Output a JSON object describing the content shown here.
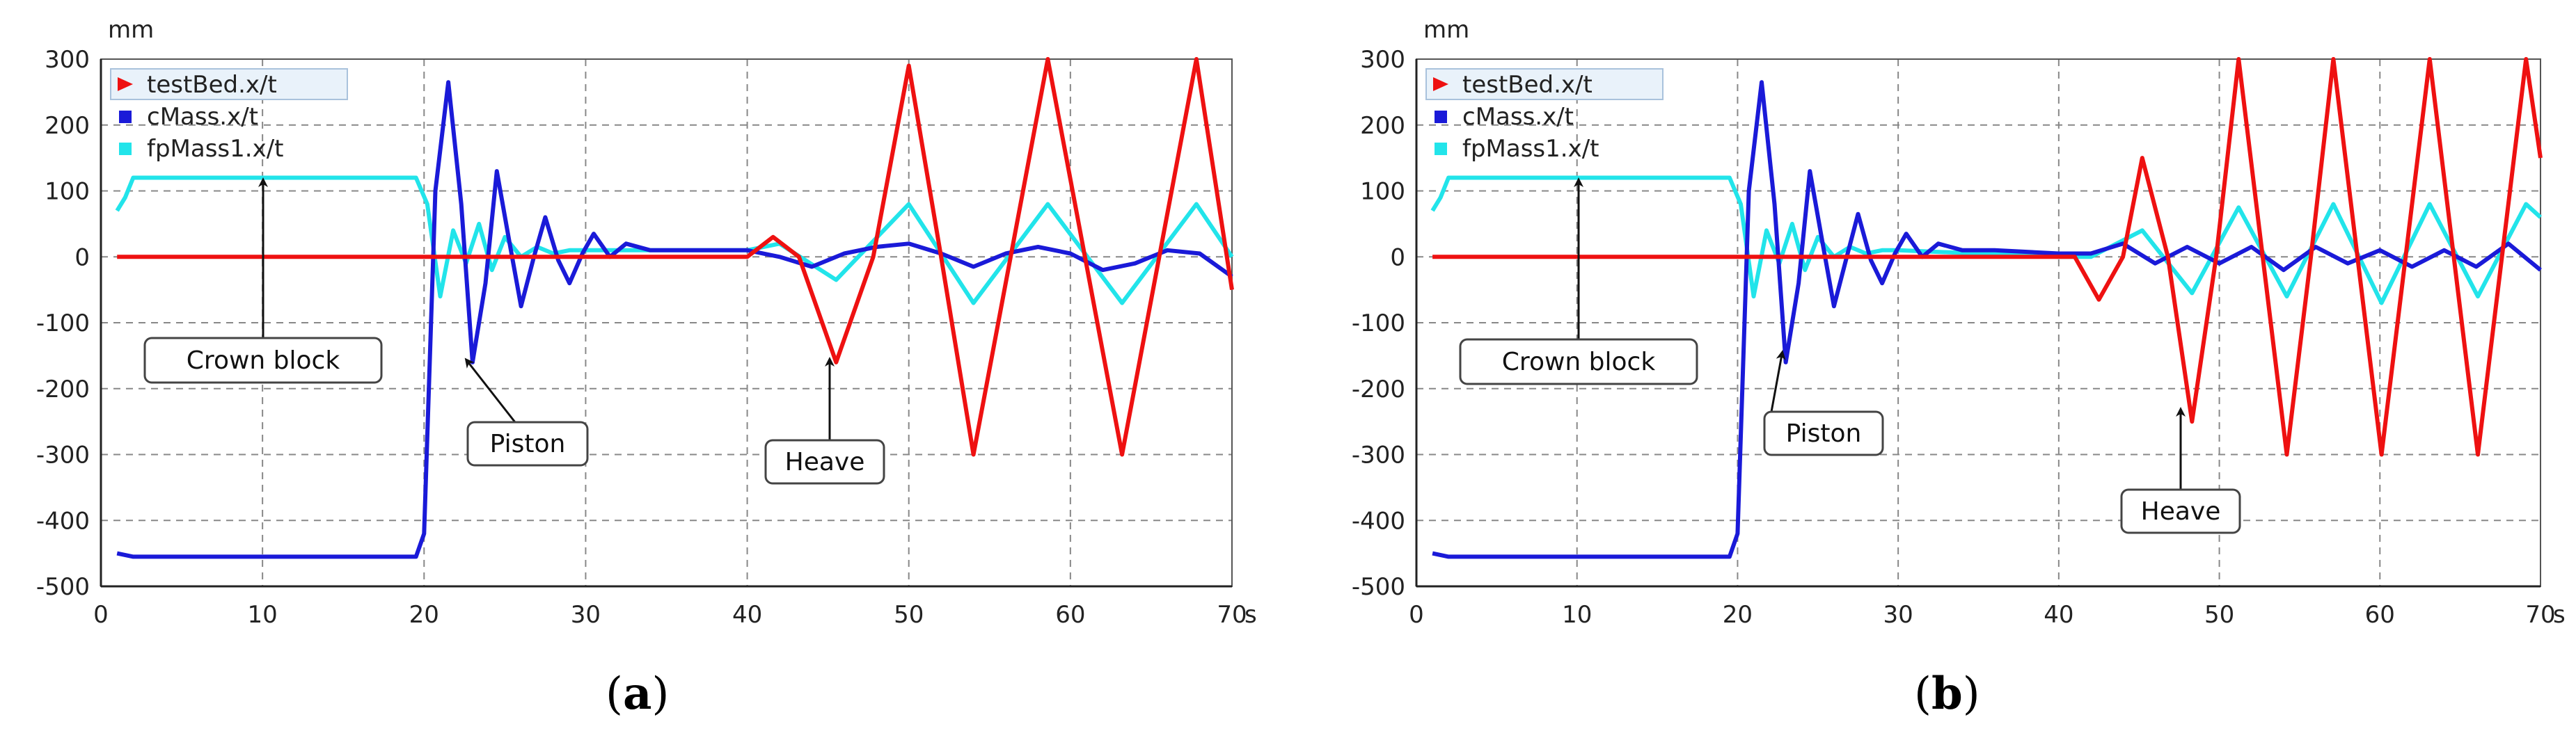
{
  "colors": {
    "testBed": "#ee1111",
    "cMass": "#1a1ad8",
    "fpMass1": "#22e4ea",
    "grid": "#888888",
    "legend_bg": "#e9f2fa"
  },
  "panels": [
    {
      "caption_open": "(",
      "caption_letter": "a",
      "caption_close": ")"
    },
    {
      "caption_open": "(",
      "caption_letter": "b",
      "caption_close": ")"
    }
  ],
  "chart_data": [
    {
      "type": "line",
      "xlabel": "s",
      "ylabel": "mm",
      "xlim": [
        0,
        70
      ],
      "ylim": [
        -500,
        300
      ],
      "xticks": [
        "0",
        "10",
        "20",
        "30",
        "40",
        "50",
        "60",
        "70"
      ],
      "yticks": [
        "300",
        "200",
        "100",
        "0",
        "-100",
        "-200",
        "-300",
        "-400",
        "-500"
      ],
      "grid": true,
      "legend_position": "top-left",
      "series": [
        {
          "name": "testBed.x/t",
          "color": "#ee1111",
          "x": [
            1,
            5,
            10,
            20,
            30,
            40,
            41.6,
            43.2,
            45.5,
            47.8,
            50,
            52,
            54,
            56.3,
            58.6,
            60.9,
            63.2,
            65.5,
            67.8,
            70
          ],
          "y": [
            0,
            0,
            0,
            0,
            0,
            0,
            30,
            0,
            -160,
            0,
            290,
            0,
            -300,
            0,
            300,
            0,
            -300,
            0,
            300,
            -50
          ]
        },
        {
          "name": "cMass.x/t",
          "color": "#1a1ad8",
          "x": [
            1,
            2,
            10,
            19.5,
            20,
            20.7,
            21.5,
            22.3,
            23,
            23.8,
            24.5,
            25.3,
            26,
            26.8,
            27.5,
            28.3,
            29,
            29.8,
            30.5,
            31.5,
            32.5,
            34,
            36,
            40,
            42,
            44,
            46,
            48,
            50,
            52,
            54,
            56,
            58,
            60,
            62,
            64,
            66,
            68,
            70
          ],
          "y": [
            -450,
            -455,
            -455,
            -455,
            -420,
            100,
            265,
            80,
            -160,
            -40,
            130,
            20,
            -75,
            0,
            60,
            -5,
            -40,
            5,
            35,
            0,
            20,
            10,
            10,
            10,
            0,
            -15,
            5,
            15,
            20,
            5,
            -15,
            5,
            15,
            5,
            -20,
            -10,
            10,
            5,
            -30
          ]
        },
        {
          "name": "fpMass1.x/t",
          "color": "#22e4ea",
          "x": [
            1,
            1.5,
            2,
            10,
            19.5,
            20.2,
            21,
            21.8,
            22.6,
            23.4,
            24.2,
            25,
            26,
            27,
            28,
            29,
            30,
            40,
            42,
            45.5,
            50,
            54,
            58.6,
            63.2,
            67.8,
            70
          ],
          "y": [
            70,
            90,
            120,
            120,
            120,
            80,
            -60,
            40,
            -10,
            50,
            -20,
            30,
            0,
            15,
            5,
            10,
            10,
            10,
            20,
            -35,
            80,
            -70,
            80,
            -70,
            80,
            0
          ]
        }
      ],
      "annotations": [
        "Crown block",
        "Piston",
        "Heave"
      ]
    },
    {
      "type": "line",
      "xlabel": "s",
      "ylabel": "mm",
      "xlim": [
        0,
        70
      ],
      "ylim": [
        -500,
        300
      ],
      "xticks": [
        "0",
        "10",
        "20",
        "30",
        "40",
        "50",
        "60",
        "70"
      ],
      "yticks": [
        "300",
        "200",
        "100",
        "0",
        "-100",
        "-200",
        "-300",
        "-400",
        "-500"
      ],
      "grid": true,
      "legend_position": "top-left",
      "series": [
        {
          "name": "testBed.x/t",
          "color": "#ee1111",
          "x": [
            1,
            10,
            20,
            30,
            40,
            41,
            42.5,
            44,
            45.2,
            46.8,
            48.3,
            49.8,
            51.2,
            52.7,
            54.2,
            55.7,
            57.1,
            58.6,
            60.1,
            61.6,
            63.1,
            64.6,
            66.1,
            67.6,
            69.1,
            70
          ],
          "y": [
            0,
            0,
            0,
            0,
            0,
            0,
            -65,
            0,
            150,
            0,
            -250,
            0,
            300,
            0,
            -300,
            0,
            300,
            0,
            -300,
            0,
            300,
            0,
            -300,
            0,
            300,
            150
          ]
        },
        {
          "name": "cMass.x/t",
          "color": "#1a1ad8",
          "x": [
            1,
            2,
            10,
            19.5,
            20,
            20.7,
            21.5,
            22.3,
            23,
            23.8,
            24.5,
            25.3,
            26,
            26.8,
            27.5,
            28.3,
            29,
            29.8,
            30.5,
            31.5,
            32.5,
            34,
            36,
            40,
            42,
            44,
            46,
            48,
            50,
            52,
            54,
            56,
            58,
            60,
            62,
            64,
            66,
            68,
            70
          ],
          "y": [
            -450,
            -455,
            -455,
            -455,
            -420,
            100,
            265,
            80,
            -160,
            -40,
            130,
            20,
            -75,
            0,
            65,
            -5,
            -40,
            5,
            35,
            0,
            20,
            10,
            10,
            5,
            5,
            20,
            -10,
            15,
            -10,
            15,
            -20,
            15,
            -10,
            10,
            -15,
            10,
            -15,
            20,
            -20
          ]
        },
        {
          "name": "fpMass1.x/t",
          "color": "#22e4ea",
          "x": [
            1,
            1.5,
            2,
            10,
            19.5,
            20.2,
            21,
            21.8,
            22.6,
            23.4,
            24.2,
            25,
            26,
            27,
            28,
            29,
            30,
            40,
            42,
            45.2,
            48.3,
            51.2,
            54.2,
            57.1,
            60.1,
            63.1,
            66.1,
            69.1,
            70
          ],
          "y": [
            70,
            90,
            120,
            120,
            120,
            80,
            -60,
            40,
            -10,
            50,
            -20,
            30,
            0,
            15,
            5,
            10,
            10,
            0,
            0,
            40,
            -55,
            75,
            -60,
            80,
            -70,
            80,
            -60,
            80,
            60
          ]
        }
      ],
      "annotations": [
        "Crown block",
        "Piston",
        "Heave"
      ]
    }
  ]
}
